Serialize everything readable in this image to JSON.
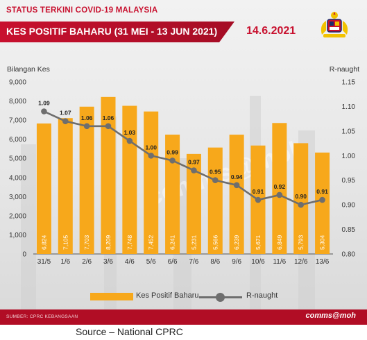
{
  "header": {
    "status_title": "STATUS TERKINI COVID-19 MALAYSIA",
    "banner_title": "KES POSITIF BAHARU (31 MEI - 13 JUN 2021)",
    "date": "14.6.2021"
  },
  "chart_data": {
    "type": "bar",
    "categories": [
      "31/5",
      "1/6",
      "2/6",
      "3/6",
      "4/6",
      "5/6",
      "6/6",
      "7/6",
      "8/6",
      "9/6",
      "10/6",
      "11/6",
      "12/6",
      "13/6"
    ],
    "series": [
      {
        "name": "Kes Positif Baharu",
        "type": "bar",
        "axis": "left",
        "values": [
          6824,
          7105,
          7703,
          8209,
          7748,
          7452,
          6241,
          5231,
          5566,
          6239,
          5671,
          6849,
          5793,
          5304
        ],
        "labels": [
          "6,824",
          "7,105",
          "7,703",
          "8,209",
          "7,748",
          "7,452",
          "6,241",
          "5,231",
          "5,566",
          "6,239",
          "5,671",
          "6,849",
          "5,793",
          "5,304"
        ]
      },
      {
        "name": "R-naught",
        "type": "line",
        "axis": "right",
        "values": [
          1.09,
          1.07,
          1.06,
          1.06,
          1.03,
          1.0,
          0.99,
          0.97,
          0.95,
          0.94,
          0.91,
          0.92,
          0.9,
          0.91
        ],
        "labels": [
          "1.09",
          "1.07",
          "1.06",
          "1.06",
          "1.03",
          "1.00",
          "0.99",
          "0.97",
          "0.95",
          "0.94",
          "0.91",
          "0.92",
          "0.90",
          "0.91"
        ]
      }
    ],
    "ylabel_left": "Bilangan Kes",
    "ylabel_right": "R-naught",
    "ylim_left": [
      0,
      9000
    ],
    "ylim_right": [
      0.8,
      1.15
    ],
    "yticks_left": [
      "0",
      "1,000",
      "2,000",
      "3,000",
      "4,000",
      "5,000",
      "6,000",
      "7,000",
      "8,000",
      "9,000"
    ],
    "yticks_right": [
      "0.80",
      "0.85",
      "0.90",
      "0.95",
      "1.00",
      "1.05",
      "1.10",
      "1.15"
    ],
    "grid": false,
    "legend_position": "bottom",
    "watermark": "comms@moh",
    "colors": {
      "bar": "#f7a81b",
      "line": "#6e6e6e",
      "accent": "#c8102e"
    }
  },
  "footer": {
    "source_small": "SUMBER: CPRC KEBANGSAAN",
    "brand": "comms@moh",
    "caption": "Source – National CPRC"
  }
}
